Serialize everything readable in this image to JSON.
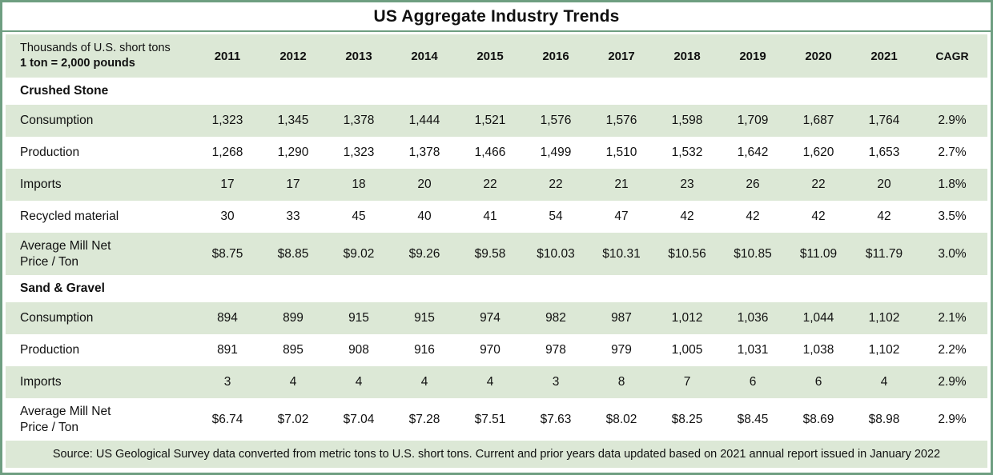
{
  "colors": {
    "frame_border": "#6e9e81",
    "row_band": "#dce8d6"
  },
  "chart_data": {
    "type": "table",
    "title": "US Aggregate Industry Trends",
    "unit_lines": [
      "Thousands of U.S. short tons",
      "1 ton = 2,000 pounds"
    ],
    "year_columns": [
      "2011",
      "2012",
      "2013",
      "2014",
      "2015",
      "2016",
      "2017",
      "2018",
      "2019",
      "2020",
      "2021"
    ],
    "cagr_label": "CAGR",
    "sections": [
      {
        "name": "Crushed Stone",
        "rows": [
          {
            "label": "Consumption",
            "values": [
              "1,323",
              "1,345",
              "1,378",
              "1,444",
              "1,521",
              "1,576",
              "1,576",
              "1,598",
              "1,709",
              "1,687",
              "1,764"
            ],
            "cagr": "2.9%"
          },
          {
            "label": "Production",
            "values": [
              "1,268",
              "1,290",
              "1,323",
              "1,378",
              "1,466",
              "1,499",
              "1,510",
              "1,532",
              "1,642",
              "1,620",
              "1,653"
            ],
            "cagr": "2.7%"
          },
          {
            "label": "Imports",
            "values": [
              "17",
              "17",
              "18",
              "20",
              "22",
              "22",
              "21",
              "23",
              "26",
              "22",
              "20"
            ],
            "cagr": "1.8%"
          },
          {
            "label": "Recycled material",
            "values": [
              "30",
              "33",
              "45",
              "40",
              "41",
              "54",
              "47",
              "42",
              "42",
              "42",
              "42"
            ],
            "cagr": "3.5%"
          },
          {
            "label": "Average Mill Net\nPrice / Ton",
            "values": [
              "$8.75",
              "$8.85",
              "$9.02",
              "$9.26",
              "$9.58",
              "$10.03",
              "$10.31",
              "$10.56",
              "$10.85",
              "$11.09",
              "$11.79"
            ],
            "cagr": "3.0%",
            "two_line": true
          }
        ]
      },
      {
        "name": "Sand & Gravel",
        "rows": [
          {
            "label": "Consumption",
            "values": [
              "894",
              "899",
              "915",
              "915",
              "974",
              "982",
              "987",
              "1,012",
              "1,036",
              "1,044",
              "1,102"
            ],
            "cagr": "2.1%"
          },
          {
            "label": "Production",
            "values": [
              "891",
              "895",
              "908",
              "916",
              "970",
              "978",
              "979",
              "1,005",
              "1,031",
              "1,038",
              "1,102"
            ],
            "cagr": "2.2%"
          },
          {
            "label": "Imports",
            "values": [
              "3",
              "4",
              "4",
              "4",
              "4",
              "3",
              "8",
              "7",
              "6",
              "6",
              "4"
            ],
            "cagr": "2.9%"
          },
          {
            "label": "Average Mill Net\nPrice / Ton",
            "values": [
              "$6.74",
              "$7.02",
              "$7.04",
              "$7.28",
              "$7.51",
              "$7.63",
              "$8.02",
              "$8.25",
              "$8.45",
              "$8.69",
              "$8.98"
            ],
            "cagr": "2.9%",
            "two_line": true
          }
        ]
      }
    ],
    "source_note": "Source: US Geological Survey data converted from metric tons to U.S. short tons. Current and prior years data updated based on 2021 annual report issued in January 2022"
  }
}
